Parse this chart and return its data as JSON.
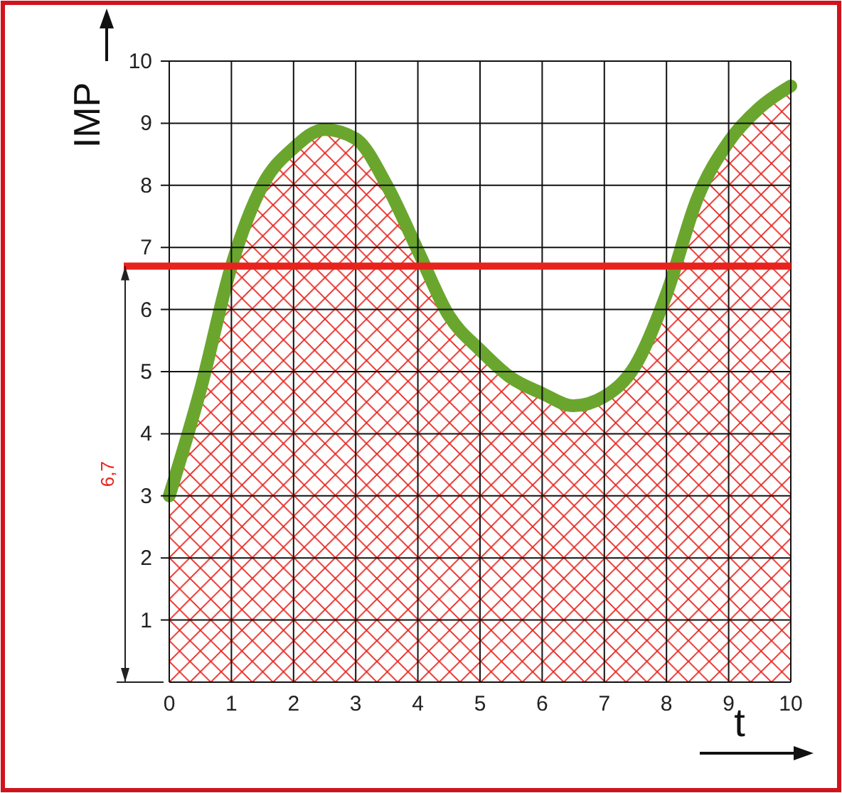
{
  "chart_data": {
    "type": "area",
    "xlabel": "t",
    "ylabel": "IMP",
    "x": [
      0,
      0.5,
      1,
      1.5,
      2,
      2.5,
      3,
      3.5,
      4,
      4.5,
      5,
      5.5,
      6,
      6.5,
      7,
      7.5,
      8,
      8.5,
      9,
      9.5,
      10
    ],
    "series": [
      {
        "color": "#6aa62e",
        "values": [
          3,
          4.7,
          6.7,
          8.0,
          8.6,
          8.9,
          8.75,
          8.0,
          6.95,
          5.9,
          5.35,
          4.9,
          4.65,
          4.45,
          4.6,
          5.1,
          6.25,
          7.8,
          8.7,
          9.25,
          9.6
        ]
      }
    ],
    "xlim": [
      0,
      10
    ],
    "ylim": [
      0,
      10
    ],
    "xticks": [
      0,
      1,
      2,
      3,
      4,
      5,
      6,
      7,
      8,
      9,
      10
    ],
    "yticks": [
      1,
      2,
      3,
      4,
      5,
      6,
      7,
      8,
      9,
      10
    ],
    "ref_lines": [
      {
        "axis": "y",
        "value": 6.7,
        "label": "6,7",
        "color": "#e8221c"
      }
    ],
    "grid": true
  }
}
